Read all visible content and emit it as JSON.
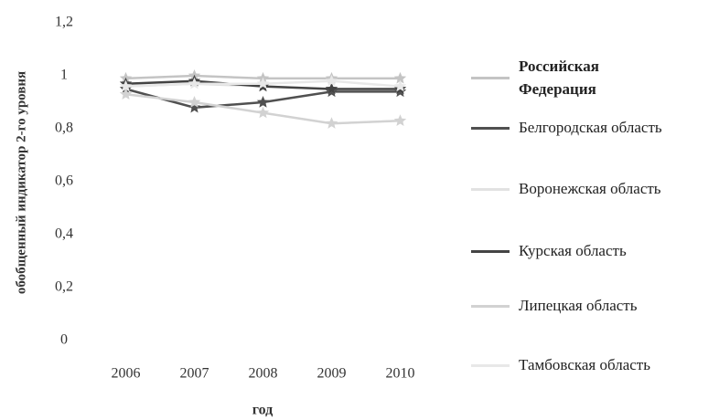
{
  "chart_data": {
    "type": "line",
    "ylabel": "обобщенный индикатор 2-го уровня",
    "xlabel": "год",
    "categories": [
      "2006",
      "2007",
      "2008",
      "2009",
      "2010"
    ],
    "series": [
      {
        "name": "Российская Федерация",
        "color": "#c4c4c4",
        "values": [
          0.99,
          1,
          0.99,
          0.99,
          0.99
        ]
      },
      {
        "name": "Белгородская область",
        "color": "#505050",
        "values": [
          0.95,
          0.88,
          0.9,
          0.94,
          0.94
        ]
      },
      {
        "name": "Воронежская область",
        "color": "#e2e2e2",
        "values": [
          0.96,
          0.97,
          0.96,
          0.95,
          0.95
        ]
      },
      {
        "name": "Курская область",
        "color": "#444444",
        "values": [
          0.97,
          0.98,
          0.96,
          0.95,
          0.95
        ]
      },
      {
        "name": "Липецкая область",
        "color": "#d2d2d2",
        "values": [
          0.93,
          0.9,
          0.86,
          0.82,
          0.83
        ]
      },
      {
        "name": "Тамбовская область",
        "color": "#e8e8e8",
        "values": [
          0.96,
          0.97,
          0.97,
          0.98,
          0.96
        ]
      }
    ],
    "ylim": [
      0,
      1.2
    ],
    "yticks": [
      0,
      {
        "value": 0.2,
        "label": "0,2"
      },
      {
        "value": 0.4,
        "label": "0,4"
      },
      {
        "value": 0.6,
        "label": "0,6"
      },
      {
        "value": 0.8,
        "label": "0,8"
      },
      1,
      {
        "value": 1.2,
        "label": "1,2"
      }
    ],
    "grid": false,
    "legend": "right"
  }
}
